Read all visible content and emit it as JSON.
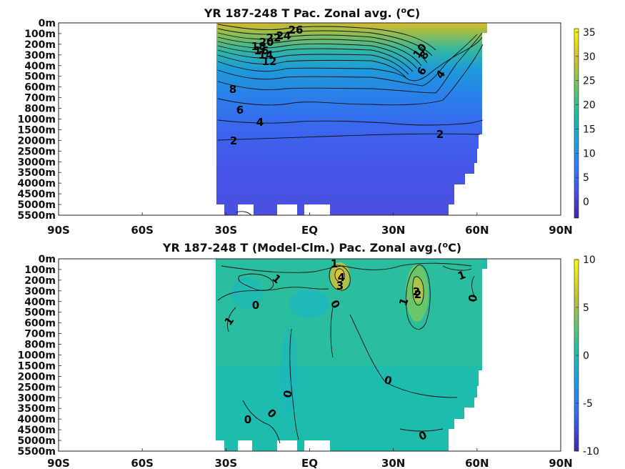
{
  "chart_data": [
    {
      "type": "heatmap",
      "title": "YR 187-248 T Pac. Zonal avg. (",
      "title_sup": "o",
      "title_end": "C)",
      "y_tick_labels": [
        "0m",
        "100m",
        "200m",
        "300m",
        "400m",
        "500m",
        "600m",
        "700m",
        "800m",
        "1000m",
        "1500m",
        "2000m",
        "2500m",
        "3000m",
        "3500m",
        "4000m",
        "4500m",
        "5000m",
        "5500m"
      ],
      "x_tick_labels": [
        "90S",
        "60S",
        "30S",
        "EQ",
        "30N",
        "60N",
        "90N"
      ],
      "xlim": [
        -90,
        90
      ],
      "data_extent_lat": [
        -34,
        61
      ],
      "colorbar": {
        "range": [
          -4,
          36
        ],
        "ticks": [
          "35",
          "30",
          "25",
          "20",
          "15",
          "10",
          "5",
          "0"
        ]
      },
      "contour_labels": [
        "26",
        "24",
        "22",
        "20",
        "18",
        "16",
        "14",
        "12",
        "10",
        "8",
        "6",
        "4",
        "2",
        "8",
        "6",
        "4",
        "2",
        "10"
      ]
    },
    {
      "type": "heatmap",
      "title": "YR 187-248 T (Model-Clm.) Pac. Zonal avg.(",
      "title_sup": "o",
      "title_end": "C)",
      "y_tick_labels": [
        "0m",
        "100m",
        "200m",
        "300m",
        "400m",
        "500m",
        "600m",
        "700m",
        "800m",
        "1000m",
        "1500m",
        "2000m",
        "2500m",
        "3000m",
        "3500m",
        "4000m",
        "4500m",
        "5000m",
        "5500m"
      ],
      "x_tick_labels": [
        "90S",
        "60S",
        "30S",
        "EQ",
        "30N",
        "60N",
        "90N"
      ],
      "xlim": [
        -90,
        90
      ],
      "data_extent_lat": [
        -34,
        61
      ],
      "colorbar": {
        "range": [
          -10,
          10
        ],
        "ticks": [
          "10",
          "5",
          "0",
          "-5",
          "-10"
        ]
      },
      "contour_labels": [
        "1",
        "4",
        "3",
        "2",
        "1",
        "0",
        "0",
        "1",
        "2",
        "1",
        "0",
        "1",
        "0",
        "0",
        "0",
        "0",
        "0"
      ]
    }
  ]
}
